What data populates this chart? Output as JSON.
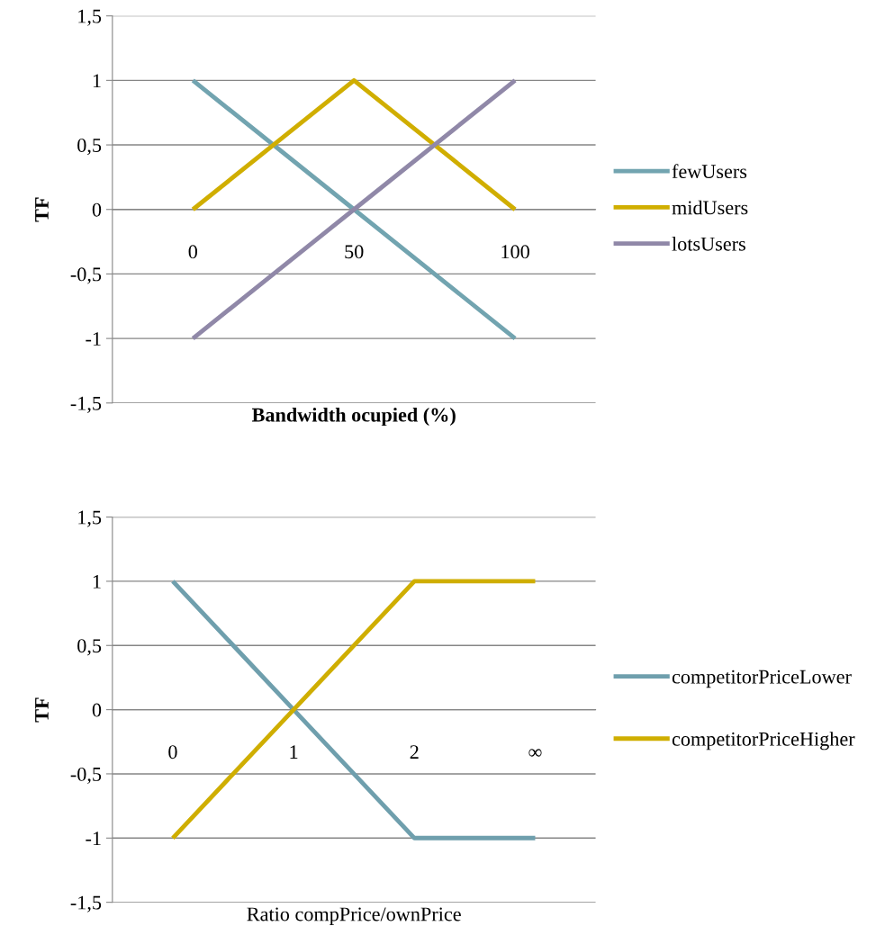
{
  "chart_data": [
    {
      "type": "line",
      "xlabel": "Bandwidth ocupied (%)",
      "ylabel": "TF",
      "categories": [
        "0",
        "50",
        "100"
      ],
      "series": [
        {
          "name": "fewUsers",
          "color": "#72a4b0",
          "values": [
            1,
            0,
            -1
          ]
        },
        {
          "name": "midUsers",
          "color": "#d0ae00",
          "values": [
            0,
            1,
            0
          ]
        },
        {
          "name": "lotsUsers",
          "color": "#9088a8",
          "values": [
            -1,
            0,
            1
          ]
        }
      ],
      "ylim": [
        -1.5,
        1.5
      ],
      "yticks": [
        {
          "value": -1.5,
          "label": "-1,5"
        },
        {
          "value": -1,
          "label": "-1"
        },
        {
          "value": -0.5,
          "label": "-0,5"
        },
        {
          "value": 0,
          "label": "0"
        },
        {
          "value": 0.5,
          "label": "0,5"
        },
        {
          "value": 1,
          "label": "1"
        },
        {
          "value": 1.5,
          "label": "1,5"
        }
      ],
      "grid": "y",
      "legend": "right",
      "marker": "none",
      "line_style": "solid"
    },
    {
      "type": "line",
      "xlabel": "Ratio compPrice/ownPrice",
      "ylabel": "TF",
      "categories": [
        "0",
        "1",
        "2",
        "∞"
      ],
      "series": [
        {
          "name": "competitorPriceLower",
          "color": "#6f9fad",
          "values": [
            1,
            0,
            -1,
            -1
          ]
        },
        {
          "name": "competitorPriceHigher",
          "color": "#cfae00",
          "values": [
            -1,
            0,
            1,
            1
          ]
        }
      ],
      "ylim": [
        -1.5,
        1.5
      ],
      "yticks": [
        {
          "value": -1.5,
          "label": "-1,5"
        },
        {
          "value": -1,
          "label": "-1"
        },
        {
          "value": -0.5,
          "label": "-0,5"
        },
        {
          "value": 0,
          "label": "0"
        },
        {
          "value": 0.5,
          "label": "0,5"
        },
        {
          "value": 1,
          "label": "1"
        },
        {
          "value": 1.5,
          "label": "1,5"
        }
      ],
      "grid": "y",
      "legend": "right",
      "marker": "none",
      "line_style": "solid"
    }
  ]
}
